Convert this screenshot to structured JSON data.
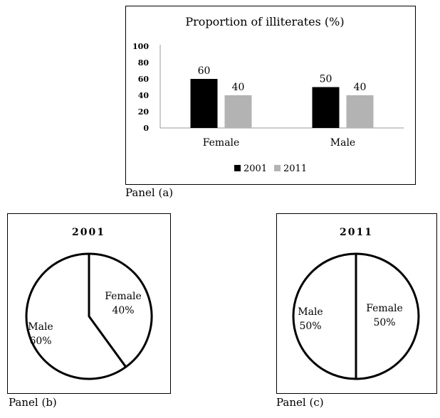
{
  "panels": {
    "a": "Panel (a)",
    "b": "Panel (b)",
    "c": "Panel (c)"
  },
  "chart_data": [
    {
      "type": "bar",
      "title": "Proportion of illiterates (%)",
      "categories": [
        "Female",
        "Male"
      ],
      "series": [
        {
          "name": "2001",
          "values": [
            60,
            50
          ],
          "color": "#000000"
        },
        {
          "name": "2011",
          "values": [
            40,
            40
          ],
          "color": "#b3b3b3"
        }
      ],
      "ylim": [
        0,
        100
      ],
      "yticks": [
        0,
        20,
        40,
        60,
        80,
        100
      ],
      "legend": "bottom",
      "data_labels": true,
      "grid": false
    },
    {
      "type": "pie",
      "title": "2001",
      "slices": [
        {
          "label": "Female",
          "value": 40,
          "value_label": "40%"
        },
        {
          "label": "Male",
          "value": 60,
          "value_label": "60%"
        }
      ]
    },
    {
      "type": "pie",
      "title": "2011",
      "slices": [
        {
          "label": "Female",
          "value": 50,
          "value_label": "50%"
        },
        {
          "label": "Male",
          "value": 50,
          "value_label": "50%"
        }
      ]
    }
  ]
}
